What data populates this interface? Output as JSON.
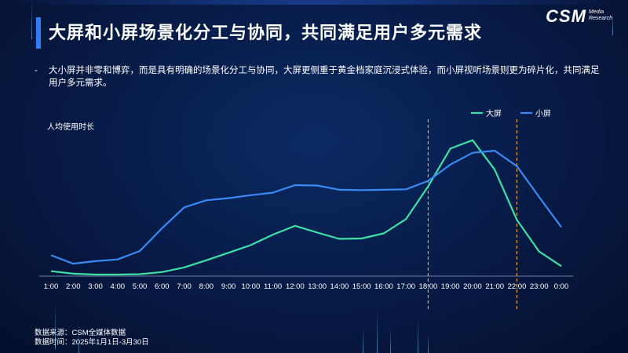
{
  "header": {
    "title": "大屏和小屏场景化分工与协同，共同满足用户多元需求",
    "logo": {
      "main": "CSM",
      "sub_line1": "Media",
      "sub_line2": "Research"
    }
  },
  "bullet": {
    "dash": "-",
    "text": "大小屏并非零和博弈，而是具有明确的场景化分工与协同，大屏更侧重于黄金档家庭沉浸式体验，而小屏视听场景则更为碎片化，共同满足用户多元需求。"
  },
  "chart_data": {
    "type": "line",
    "ylabel": "人均使用时长",
    "categories": [
      "1:00",
      "2:00",
      "3:00",
      "4:00",
      "5:00",
      "6:00",
      "7:00",
      "8:00",
      "9:00",
      "10:00",
      "11:00",
      "12:00",
      "13:00",
      "14:00",
      "15:00",
      "16:00",
      "17:00",
      "18:00",
      "19:00",
      "20:00",
      "21:00",
      "22:00",
      "23:00",
      "0:00"
    ],
    "series": [
      {
        "name": "大屏",
        "color": "#3fe0a5",
        "values": [
          8,
          2,
          0,
          0,
          1,
          6,
          17,
          34,
          52,
          70,
          95,
          116,
          100,
          85,
          86,
          98,
          132,
          210,
          300,
          320,
          250,
          130,
          55,
          20
        ]
      },
      {
        "name": "小屏",
        "color": "#3a8af5",
        "values": [
          46,
          26,
          32,
          36,
          56,
          110,
          160,
          177,
          182,
          189,
          195,
          213,
          212,
          202,
          201,
          202,
          203,
          223,
          262,
          290,
          295,
          258,
          185,
          113
        ]
      }
    ],
    "yaxis_visible": false,
    "ylim": [
      0,
      340
    ],
    "grid": false,
    "legend": "top-right",
    "highlight_lines": [
      "18:00",
      "22:00"
    ],
    "highlight_color": "#f0a020"
  },
  "footer": {
    "source": "数据来源：CSM全媒体数据",
    "period": "数据时间：2025年1月1日-3月30日"
  }
}
